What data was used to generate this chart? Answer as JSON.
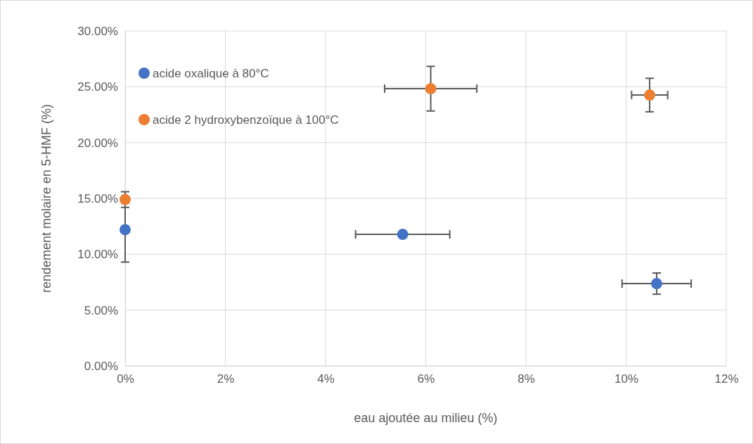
{
  "chart_data": {
    "type": "scatter",
    "xlabel": "eau ajoutée au milieu (%)",
    "ylabel": "rendement molaire en 5-HMF (%)",
    "series": [
      {
        "name": "acide oxalique à 80°C",
        "color": "#4472c4",
        "x": [
          0,
          5.54,
          10.61
        ],
        "values": [
          12.2,
          11.78,
          7.37
        ],
        "errors": [
          2.9,
          null,
          0.95
        ],
        "xerrors": [
          null,
          0.94,
          0.69
        ]
      },
      {
        "name": "acide 2 hydroxybenzoïque à 100°C",
        "color": "#ed7d31",
        "x": [
          0,
          6.1,
          10.47
        ],
        "values": [
          14.9,
          24.83,
          24.26
        ],
        "errors": [
          0.7,
          2,
          1.5
        ],
        "xerrors": [
          null,
          0.92,
          0.36
        ]
      }
    ],
    "xlim": [
      0,
      12
    ],
    "xticks": [
      {
        "value": 0,
        "label": "0%"
      },
      {
        "value": 2,
        "label": "2%"
      },
      {
        "value": 4,
        "label": "4%"
      },
      {
        "value": 6,
        "label": "6%"
      },
      {
        "value": 8,
        "label": "8%"
      },
      {
        "value": 10,
        "label": "10%"
      },
      {
        "value": 12,
        "label": "12%"
      }
    ],
    "ylim": [
      0,
      30
    ],
    "yticks": [
      {
        "value": 0,
        "label": "0.00%"
      },
      {
        "value": 5,
        "label": "5.00%"
      },
      {
        "value": 10,
        "label": "10.00%"
      },
      {
        "value": 15,
        "label": "15.00%"
      },
      {
        "value": 20,
        "label": "20.00%"
      },
      {
        "value": 25,
        "label": "25.00%"
      },
      {
        "value": 30,
        "label": "30.00%"
      }
    ],
    "grid": true,
    "legend": "top left",
    "marker": "circle"
  }
}
